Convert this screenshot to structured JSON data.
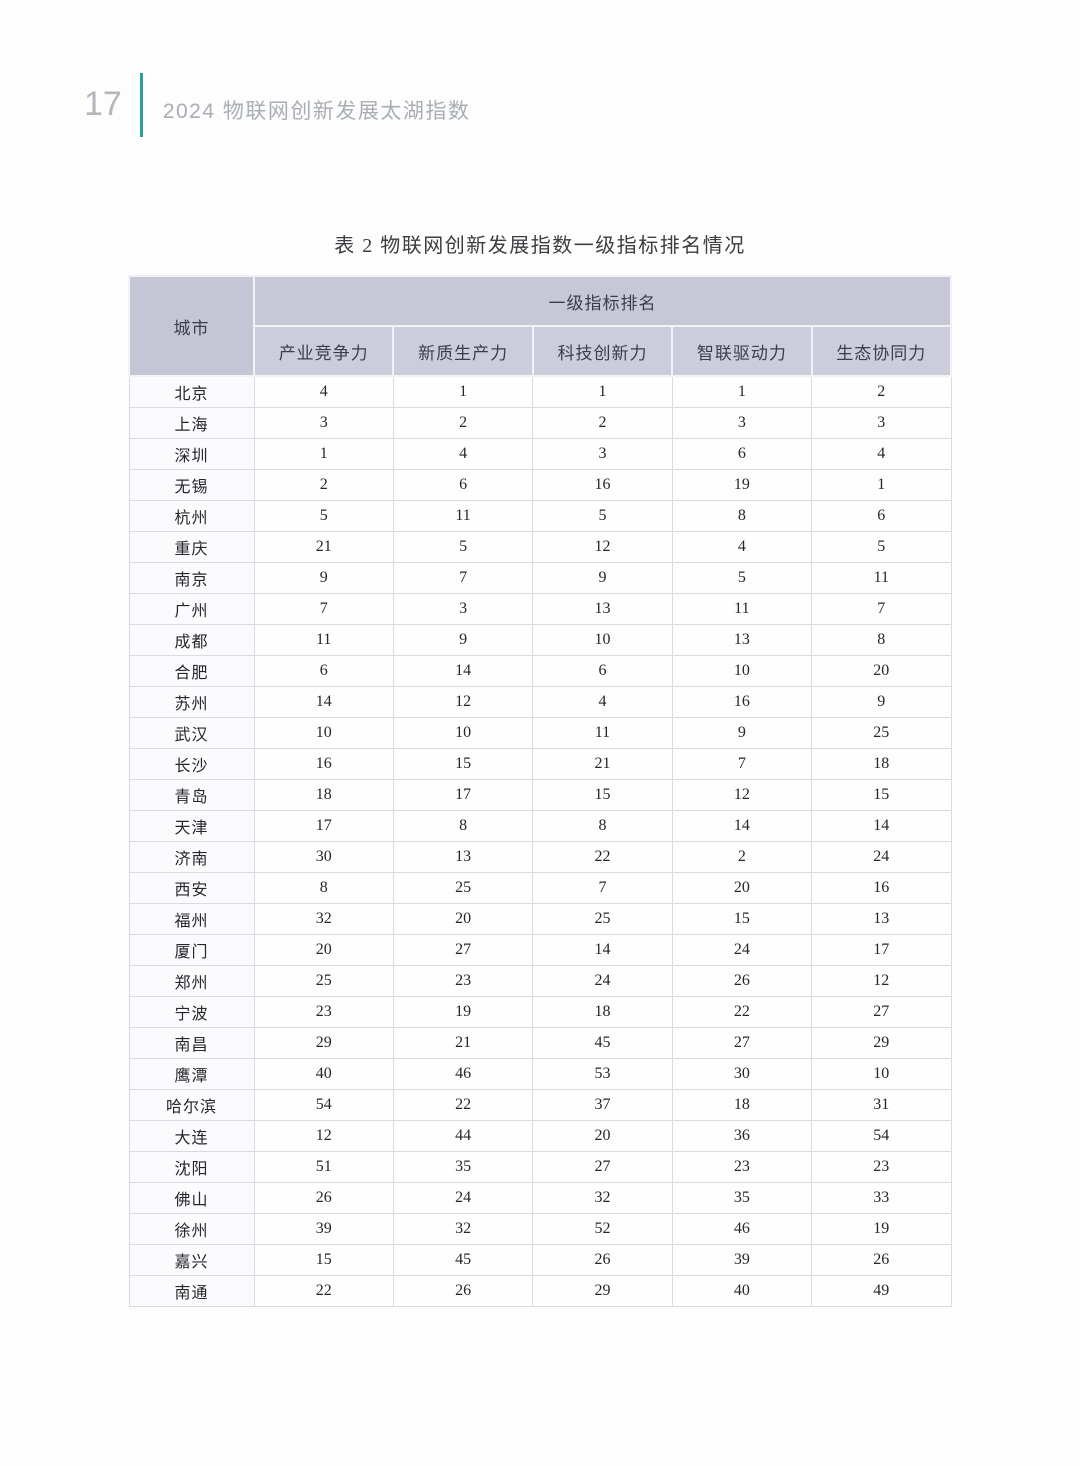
{
  "page_header": {
    "page_number": "17",
    "doc_title": "2024 物联网创新发展太湖指数",
    "accent_color": "#2d9f98"
  },
  "table": {
    "caption": "表 2  物联网创新发展指数一级指标排名情况",
    "city_header": "城市",
    "group_header": "一级指标排名",
    "columns": [
      "产业竞争力",
      "新质生产力",
      "科技创新力",
      "智联驱动力",
      "生态协同力"
    ],
    "header_bg": "#c6c8d8",
    "rows": [
      {
        "city": "北京",
        "values": [
          4,
          1,
          1,
          1,
          2
        ]
      },
      {
        "city": "上海",
        "values": [
          3,
          2,
          2,
          3,
          3
        ]
      },
      {
        "city": "深圳",
        "values": [
          1,
          4,
          3,
          6,
          4
        ]
      },
      {
        "city": "无锡",
        "values": [
          2,
          6,
          16,
          19,
          1
        ]
      },
      {
        "city": "杭州",
        "values": [
          5,
          11,
          5,
          8,
          6
        ]
      },
      {
        "city": "重庆",
        "values": [
          21,
          5,
          12,
          4,
          5
        ]
      },
      {
        "city": "南京",
        "values": [
          9,
          7,
          9,
          5,
          11
        ]
      },
      {
        "city": "广州",
        "values": [
          7,
          3,
          13,
          11,
          7
        ]
      },
      {
        "city": "成都",
        "values": [
          11,
          9,
          10,
          13,
          8
        ]
      },
      {
        "city": "合肥",
        "values": [
          6,
          14,
          6,
          10,
          20
        ]
      },
      {
        "city": "苏州",
        "values": [
          14,
          12,
          4,
          16,
          9
        ]
      },
      {
        "city": "武汉",
        "values": [
          10,
          10,
          11,
          9,
          25
        ]
      },
      {
        "city": "长沙",
        "values": [
          16,
          15,
          21,
          7,
          18
        ]
      },
      {
        "city": "青岛",
        "values": [
          18,
          17,
          15,
          12,
          15
        ]
      },
      {
        "city": "天津",
        "values": [
          17,
          8,
          8,
          14,
          14
        ]
      },
      {
        "city": "济南",
        "values": [
          30,
          13,
          22,
          2,
          24
        ]
      },
      {
        "city": "西安",
        "values": [
          8,
          25,
          7,
          20,
          16
        ]
      },
      {
        "city": "福州",
        "values": [
          32,
          20,
          25,
          15,
          13
        ]
      },
      {
        "city": "厦门",
        "values": [
          20,
          27,
          14,
          24,
          17
        ]
      },
      {
        "city": "郑州",
        "values": [
          25,
          23,
          24,
          26,
          12
        ]
      },
      {
        "city": "宁波",
        "values": [
          23,
          19,
          18,
          22,
          27
        ]
      },
      {
        "city": "南昌",
        "values": [
          29,
          21,
          45,
          27,
          29
        ]
      },
      {
        "city": "鹰潭",
        "values": [
          40,
          46,
          53,
          30,
          10
        ]
      },
      {
        "city": "哈尔滨",
        "values": [
          54,
          22,
          37,
          18,
          31
        ]
      },
      {
        "city": "大连",
        "values": [
          12,
          44,
          20,
          36,
          54
        ]
      },
      {
        "city": "沈阳",
        "values": [
          51,
          35,
          27,
          23,
          23
        ]
      },
      {
        "city": "佛山",
        "values": [
          26,
          24,
          32,
          35,
          33
        ]
      },
      {
        "city": "徐州",
        "values": [
          39,
          32,
          52,
          46,
          19
        ]
      },
      {
        "city": "嘉兴",
        "values": [
          15,
          45,
          26,
          39,
          26
        ]
      },
      {
        "city": "南通",
        "values": [
          22,
          26,
          29,
          40,
          49
        ]
      }
    ]
  }
}
